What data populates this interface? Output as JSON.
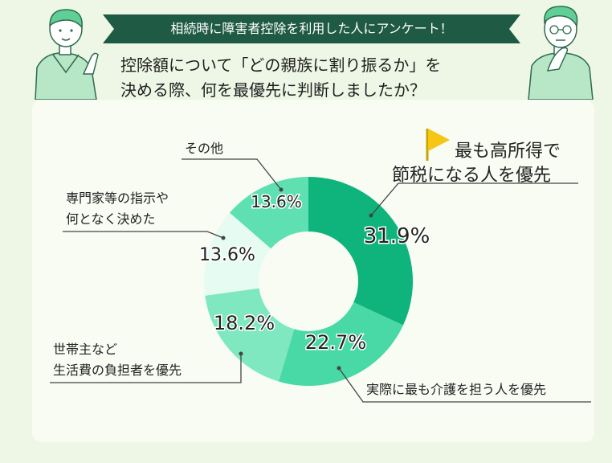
{
  "banner": "相続時に障害者控除を利用した人にアンケート！",
  "question": {
    "line1": "控除額について「どの親族に割り振るか」を",
    "line2": "決める際、何を最優先に判断しましたか？"
  },
  "colors": {
    "banner_bg": "#1f5a45",
    "slice_1": "#0fb37c",
    "slice_2": "#48d9a6",
    "slice_3": "#7fe8c0",
    "slice_4": "#e6fbf2",
    "slice_5": "#5fe0b2",
    "accent_flag": "#f7c513"
  },
  "chart_data": {
    "type": "pie",
    "donut": true,
    "categories": [
      "最も高所得で節税になる人を優先",
      "実際に最も介護を担う人を優先",
      "世帯主など生活費の負担者を優先",
      "専門家等の指示や何となく決めた",
      "その他"
    ],
    "values": [
      31.9,
      22.7,
      18.2,
      13.6,
      13.6
    ],
    "value_labels": [
      "31.9%",
      "22.7%",
      "18.2%",
      "13.6%",
      "13.6%"
    ],
    "label_lines": [
      [
        "最も高所得で",
        "節税になる人を優先"
      ],
      [
        "実際に最も介護を担う人を優先"
      ],
      [
        "世帯主など",
        "生活費の負担者を優先"
      ],
      [
        "専門家等の指示や",
        "何となく決めた"
      ],
      [
        "その他"
      ]
    ]
  }
}
